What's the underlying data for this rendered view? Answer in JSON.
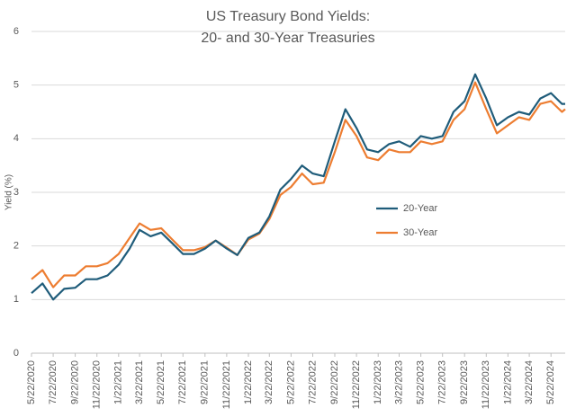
{
  "chart_data": {
    "type": "line",
    "title": [
      "US Treasury Bond Yields:",
      "20- and 30-Year Treasuries"
    ],
    "y_label": "Yield (%)",
    "x": [
      "5/22/2020",
      "6/22/2020",
      "7/22/2020",
      "8/22/2020",
      "9/22/2020",
      "10/22/2020",
      "11/22/2020",
      "12/22/2020",
      "1/22/2021",
      "2/22/2021",
      "3/22/2021",
      "4/22/2021",
      "5/22/2021",
      "6/22/2021",
      "7/22/2021",
      "8/22/2021",
      "9/22/2021",
      "10/22/2021",
      "11/22/2021",
      "12/22/2021",
      "1/22/2022",
      "2/22/2022",
      "3/22/2022",
      "4/22/2022",
      "5/22/2022",
      "6/22/2022",
      "7/22/2022",
      "8/22/2022",
      "9/22/2022",
      "10/22/2022",
      "11/22/2022",
      "12/22/2022",
      "1/22/2023",
      "2/22/2023",
      "3/22/2023",
      "4/22/2023",
      "5/22/2023",
      "6/22/2023",
      "7/22/2023",
      "8/22/2023",
      "9/22/2023",
      "10/22/2023",
      "11/22/2023",
      "12/22/2023",
      "1/22/2024",
      "2/22/2024",
      "3/22/2024",
      "4/22/2024",
      "5/22/2024",
      "6/22/2024",
      "7/1/2024"
    ],
    "series": [
      {
        "name": "20-Year",
        "color": "#1f5c7a",
        "values": [
          1.12,
          1.3,
          1.0,
          1.2,
          1.22,
          1.38,
          1.38,
          1.45,
          1.65,
          1.95,
          2.3,
          2.18,
          2.25,
          2.05,
          1.85,
          1.85,
          1.95,
          2.1,
          1.95,
          1.83,
          2.15,
          2.25,
          2.55,
          3.05,
          3.25,
          3.5,
          3.35,
          3.3,
          3.95,
          4.55,
          4.2,
          3.8,
          3.75,
          3.9,
          3.95,
          3.85,
          4.05,
          4.0,
          4.05,
          4.5,
          4.7,
          5.2,
          4.75,
          4.25,
          4.4,
          4.5,
          4.45,
          4.75,
          4.85,
          4.65,
          4.65
        ]
      },
      {
        "name": "30-Year",
        "color": "#ed7d31",
        "values": [
          1.38,
          1.55,
          1.23,
          1.45,
          1.45,
          1.62,
          1.62,
          1.68,
          1.85,
          2.15,
          2.42,
          2.3,
          2.33,
          2.12,
          1.92,
          1.92,
          1.98,
          2.1,
          1.97,
          1.83,
          2.12,
          2.23,
          2.5,
          2.95,
          3.1,
          3.35,
          3.15,
          3.18,
          3.75,
          4.35,
          4.05,
          3.65,
          3.6,
          3.8,
          3.75,
          3.75,
          3.95,
          3.9,
          3.95,
          4.35,
          4.55,
          5.05,
          4.55,
          4.1,
          4.25,
          4.4,
          4.35,
          4.65,
          4.7,
          4.5,
          4.55
        ]
      }
    ],
    "xlim": [
      "5/22/2020",
      "7/1/2024"
    ],
    "xticks": [
      "5/22/2020",
      "7/22/2020",
      "9/22/2020",
      "11/22/2020",
      "1/22/2021",
      "3/22/2021",
      "5/22/2021",
      "7/22/2021",
      "9/22/2021",
      "11/22/2021",
      "1/22/2022",
      "3/22/2022",
      "5/22/2022",
      "7/22/2022",
      "9/22/2022",
      "11/22/2022",
      "1/22/2023",
      "3/22/2023",
      "5/22/2023",
      "7/22/2023",
      "9/22/2023",
      "11/22/2023",
      "1/22/2024",
      "3/22/2024",
      "5/22/2024"
    ],
    "ylim": [
      0,
      6
    ],
    "yticks": [
      0,
      1,
      2,
      3,
      4,
      5,
      6
    ],
    "grid": true,
    "legend": "center right"
  }
}
